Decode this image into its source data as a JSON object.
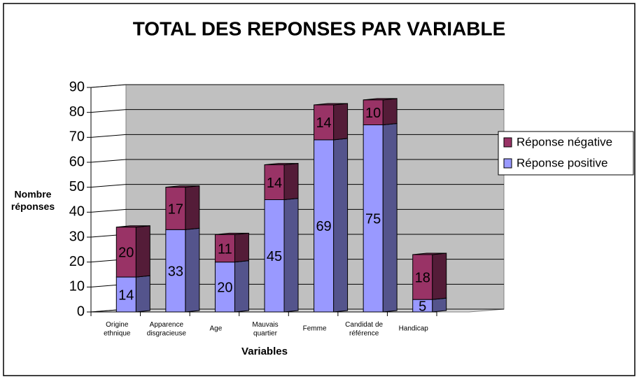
{
  "chart_data": {
    "type": "stacked_bar_3d",
    "title": "TOTAL DES REPONSES PAR VARIABLE",
    "x_label": "Variables",
    "y_label": "Nombre\nréponses",
    "categories": [
      "Origine\nethnique",
      "Apparence\ndisgracieuse",
      "Age",
      "Mauvais\nquartier",
      "Femme",
      "Candidat de\nréférence",
      "Handicap"
    ],
    "series": [
      {
        "name": "Réponse positive",
        "color": "#9999ff",
        "values": [
          14,
          33,
          20,
          45,
          69,
          75,
          5
        ]
      },
      {
        "name": "Réponse négative",
        "color": "#993366",
        "values": [
          20,
          17,
          11,
          14,
          14,
          10,
          18
        ]
      }
    ],
    "ylim": [
      0,
      90
    ],
    "yticks": [
      0,
      10,
      20,
      30,
      40,
      50,
      60,
      70,
      80,
      90
    ],
    "grid": true,
    "legend": "right"
  }
}
